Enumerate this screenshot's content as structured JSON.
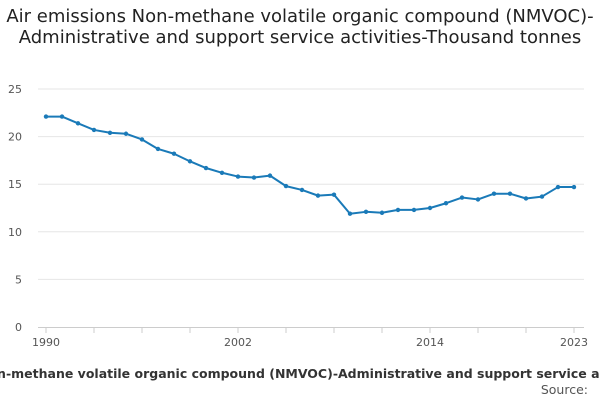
{
  "chart_data": {
    "type": "line",
    "title": "Air emissions Non-methane volatile organic compound (NMVOC)-Administrative and support service activities-Thousand tonnes",
    "x": [
      1990,
      1991,
      1992,
      1993,
      1994,
      1995,
      1996,
      1997,
      1998,
      1999,
      2000,
      2001,
      2002,
      2003,
      2004,
      2005,
      2006,
      2007,
      2008,
      2009,
      2010,
      2011,
      2012,
      2013,
      2014,
      2015,
      2016,
      2017,
      2018,
      2019,
      2020,
      2021,
      2022,
      2023
    ],
    "series": [
      {
        "name": "Non-methane volatile organic compound (NMVOC)-Administrative and support service activities",
        "color": "#1a7ab8",
        "values": [
          22.1,
          22.1,
          21.4,
          20.7,
          20.4,
          20.3,
          19.7,
          18.7,
          18.2,
          17.4,
          16.7,
          16.2,
          15.8,
          15.7,
          15.9,
          14.8,
          14.4,
          13.8,
          13.9,
          11.9,
          12.1,
          12.0,
          12.3,
          12.3,
          12.5,
          13.0,
          13.6,
          13.4,
          14.0,
          14.0,
          13.5,
          13.7,
          14.7,
          14.7
        ]
      }
    ],
    "x_tick_labels": [
      "1990",
      "2002",
      "2014",
      "2023"
    ],
    "y_tick_labels": [
      "0",
      "5",
      "10",
      "15",
      "20",
      "25"
    ],
    "xlim": [
      1990,
      2023
    ],
    "ylim": [
      0,
      25
    ],
    "grid": true,
    "legend_position": "bottom"
  },
  "source_label": "Source:"
}
